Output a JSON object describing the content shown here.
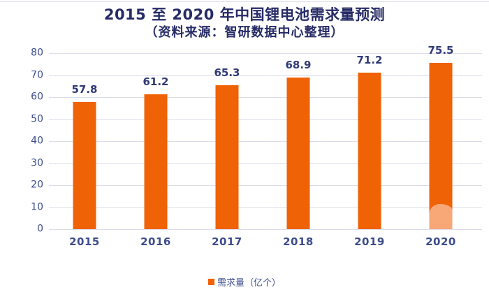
{
  "header": {
    "title": "2015 至 2020 年中国锂电池需求量预测",
    "subtitle": "（资料来源：智研数据中心整理）"
  },
  "legend": {
    "label": "需求量（亿个）"
  },
  "colors": {
    "bar_orange": "#F06206",
    "title_navy": "#262B66",
    "axis_blue": "#3D4C8C",
    "value_navy": "#2F3A75",
    "gridline": "#DCDDE9"
  },
  "chart_data": {
    "type": "bar",
    "title": "2015 至 2020 年中国锂电池需求量预测",
    "subtitle": "（资料来源：智研数据中心整理）",
    "categories": [
      "2015",
      "2016",
      "2017",
      "2018",
      "2019",
      "2020"
    ],
    "values": [
      57.8,
      61.2,
      65.3,
      68.9,
      71.2,
      75.5
    ],
    "series_name": "需求量（亿个）",
    "xlabel": "",
    "ylabel": "",
    "ylim": [
      0,
      80
    ],
    "yticks": [
      0,
      10,
      20,
      30,
      40,
      50,
      60,
      70,
      80
    ],
    "grid": "horizontal",
    "legend_position": "bottom",
    "data_labels_shown": true
  }
}
